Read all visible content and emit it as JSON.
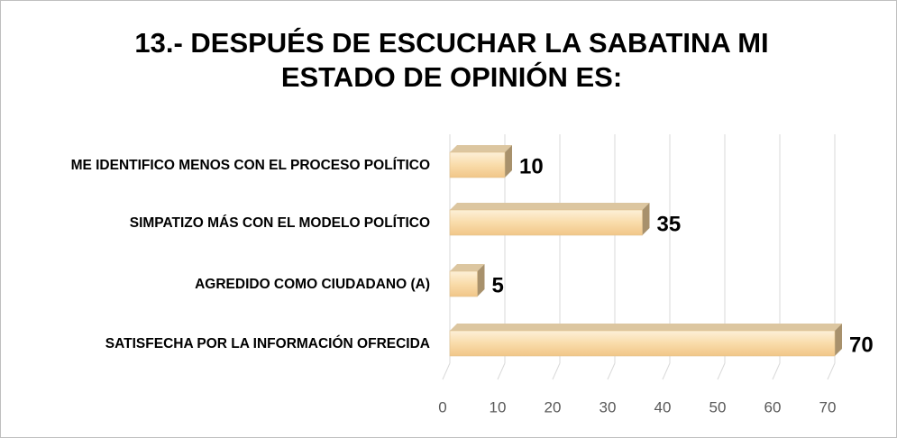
{
  "chart_data": {
    "type": "bar",
    "orientation": "horizontal",
    "title": "13.- DESPUÉS DE ESCUCHAR LA SABATINA MI ESTADO DE OPINIÓN ES:",
    "categories": [
      "ME IDENTIFICO MENOS CON EL PROCESO POLÍTICO",
      "SIMPATIZO MÁS CON EL MODELO POLÍTICO",
      "AGREDIDO COMO CIUDADANO (A)",
      "SATISFECHA POR LA INFORMACIÓN OFRECIDA"
    ],
    "values": [
      10,
      35,
      5,
      70
    ],
    "color": "#f9dcaa",
    "xlim": [
      0,
      70
    ],
    "xticks": [
      0,
      10,
      20,
      30,
      40,
      50,
      60,
      70
    ],
    "grid": true
  }
}
